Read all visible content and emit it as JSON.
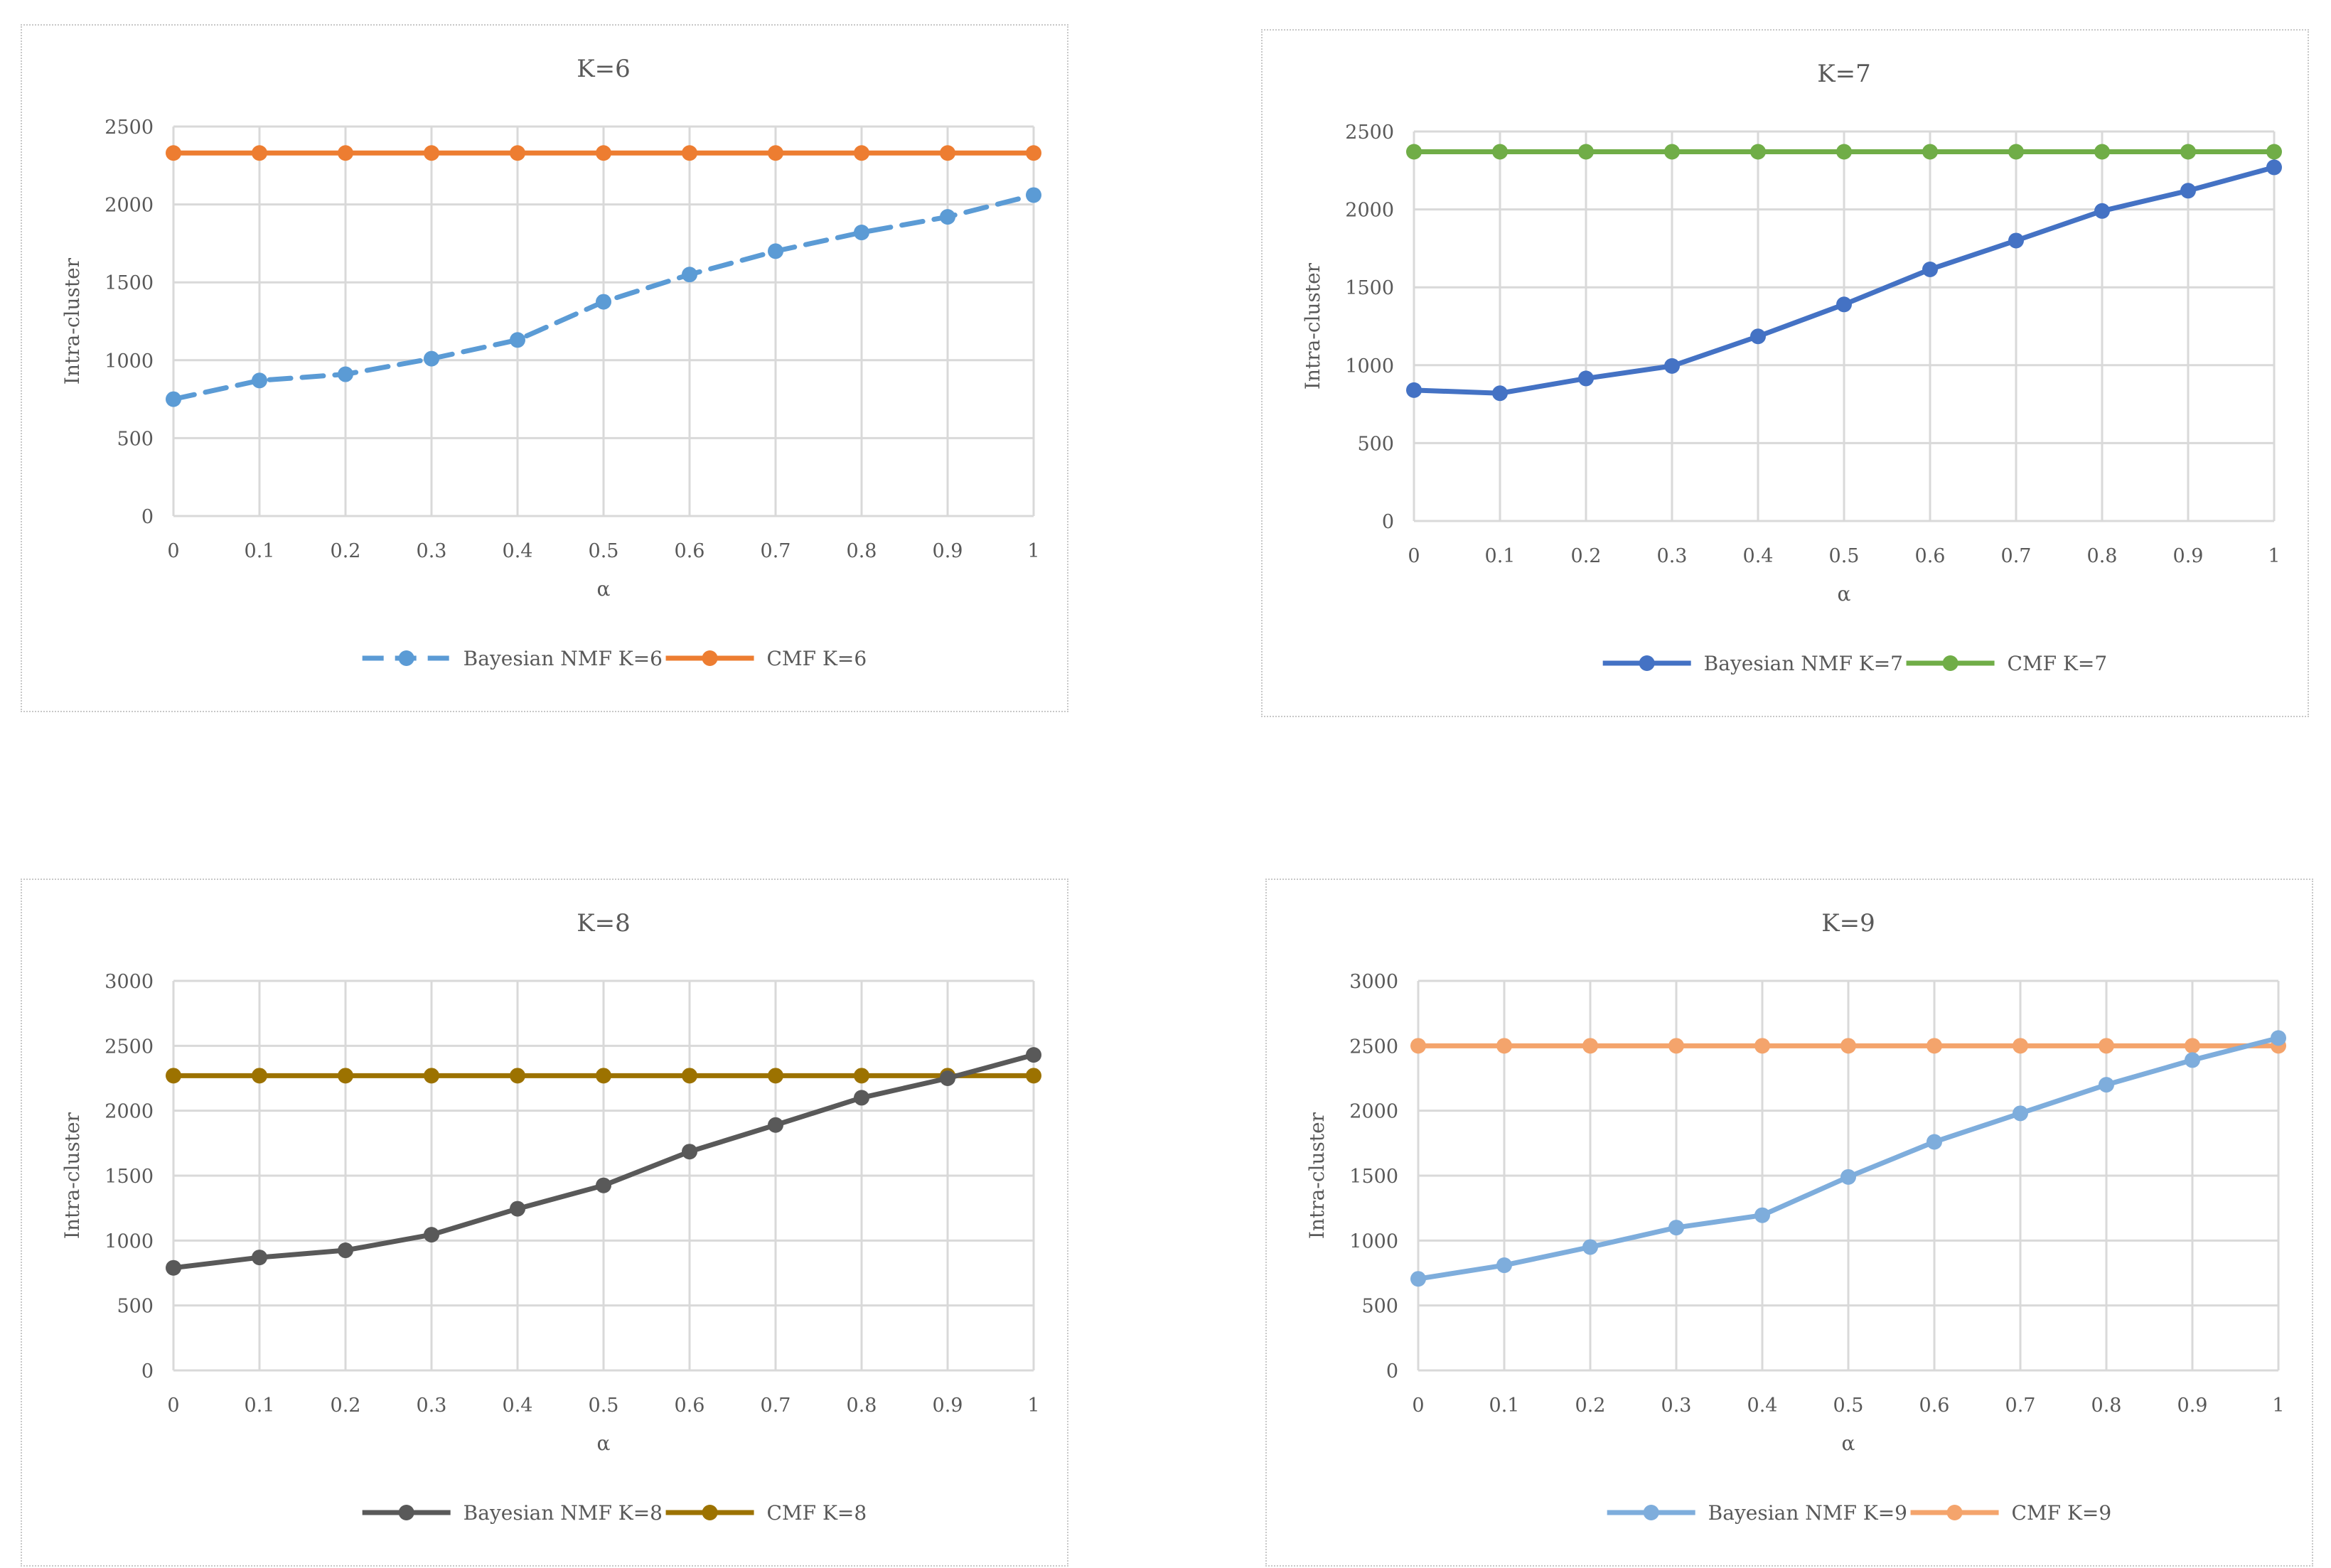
{
  "chart_data": [
    {
      "type": "line",
      "title": "K=6",
      "xlabel": "α",
      "ylabel": "Intra-cluster",
      "categories": [
        "0",
        "0.1",
        "0.2",
        "0.3",
        "0.4",
        "0.5",
        "0.6",
        "0.7",
        "0.8",
        "0.9",
        "1"
      ],
      "ylim": [
        0,
        2500
      ],
      "yticks": [
        "0",
        "500",
        "1000",
        "1500",
        "2000",
        "2500"
      ],
      "legend_position": "bottom",
      "series": [
        {
          "name": "Bayesian NMF K=6",
          "color": "#5B9BD5",
          "dashed": true,
          "values": [
            750,
            870,
            910,
            1010,
            1130,
            1375,
            1550,
            1700,
            1820,
            1920,
            2060
          ]
        },
        {
          "name": "CMF K=6",
          "color": "#ED7D31",
          "dashed": false,
          "values": [
            2330,
            2330,
            2330,
            2330,
            2330,
            2330,
            2330,
            2330,
            2330,
            2330,
            2330
          ]
        }
      ]
    },
    {
      "type": "line",
      "title": "K=7",
      "xlabel": "α",
      "ylabel": "Intra-cluster",
      "categories": [
        "0",
        "0.1",
        "0.2",
        "0.3",
        "0.4",
        "0.5",
        "0.6",
        "0.7",
        "0.8",
        "0.9",
        "1"
      ],
      "ylim": [
        0,
        2500
      ],
      "yticks": [
        "0",
        "500",
        "1000",
        "1500",
        "2000",
        "2500"
      ],
      "legend_position": "bottom",
      "series": [
        {
          "name": "Bayesian NMF K=7",
          "color": "#4472C4",
          "dashed": false,
          "values": [
            840,
            820,
            915,
            995,
            1185,
            1390,
            1615,
            1800,
            1990,
            2120,
            2270
          ]
        },
        {
          "name": "CMF K=7",
          "color": "#70AD47",
          "dashed": false,
          "values": [
            2370,
            2370,
            2370,
            2370,
            2370,
            2370,
            2370,
            2370,
            2370,
            2370,
            2370
          ]
        }
      ]
    },
    {
      "type": "line",
      "title": "K=8",
      "xlabel": "α",
      "ylabel": "Intra-cluster",
      "categories": [
        "0",
        "0.1",
        "0.2",
        "0.3",
        "0.4",
        "0.5",
        "0.6",
        "0.7",
        "0.8",
        "0.9",
        "1"
      ],
      "ylim": [
        0,
        3000
      ],
      "yticks": [
        "0",
        "500",
        "1000",
        "1500",
        "2000",
        "2500",
        "3000"
      ],
      "legend_position": "bottom",
      "series": [
        {
          "name": "Bayesian NMF K=8",
          "color": "#595959",
          "dashed": false,
          "values": [
            790,
            870,
            925,
            1045,
            1245,
            1425,
            1685,
            1890,
            2100,
            2250,
            2430
          ]
        },
        {
          "name": "CMF K=8",
          "color": "#9C7200",
          "dashed": false,
          "values": [
            2270,
            2270,
            2270,
            2270,
            2270,
            2270,
            2270,
            2270,
            2270,
            2270,
            2270
          ]
        }
      ]
    },
    {
      "type": "line",
      "title": "K=9",
      "xlabel": "α",
      "ylabel": "Intra-cluster",
      "categories": [
        "0",
        "0.1",
        "0.2",
        "0.3",
        "0.4",
        "0.5",
        "0.6",
        "0.7",
        "0.8",
        "0.9",
        "1"
      ],
      "ylim": [
        0,
        3000
      ],
      "yticks": [
        "0",
        "500",
        "1000",
        "1500",
        "2000",
        "2500",
        "3000"
      ],
      "legend_position": "bottom",
      "series": [
        {
          "name": "Bayesian NMF K=9",
          "color": "#7EADDC",
          "dashed": false,
          "values": [
            705,
            810,
            950,
            1100,
            1195,
            1490,
            1760,
            1980,
            2200,
            2390,
            2560
          ]
        },
        {
          "name": "CMF K=9",
          "color": "#F4A46C",
          "dashed": false,
          "values": [
            2500,
            2500,
            2500,
            2500,
            2500,
            2500,
            2500,
            2500,
            2500,
            2500,
            2500
          ]
        }
      ]
    }
  ]
}
